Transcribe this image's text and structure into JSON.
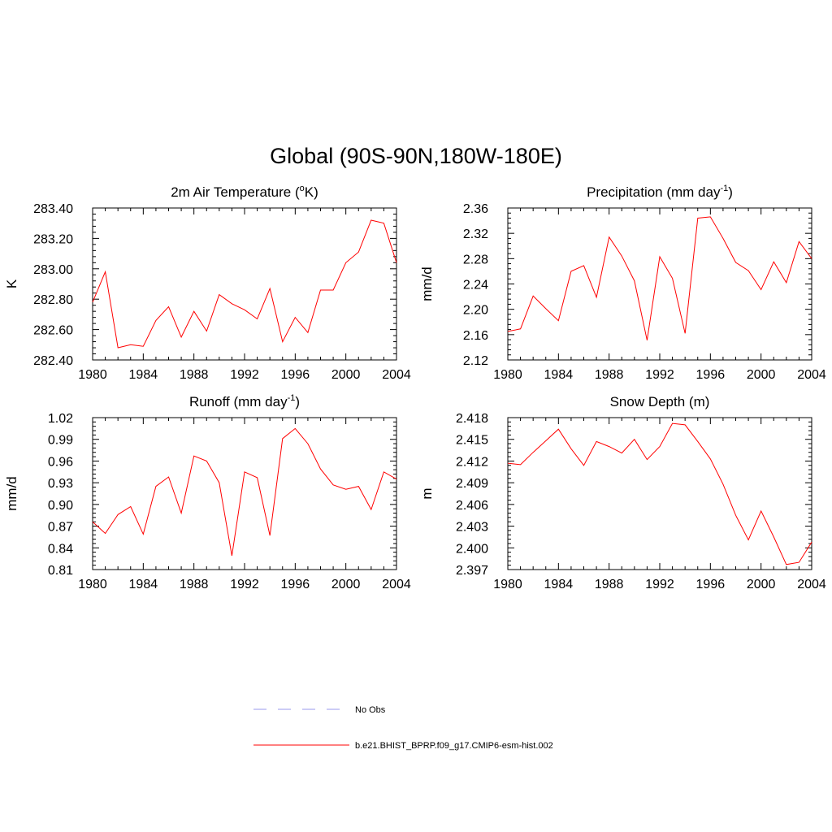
{
  "figure": {
    "title": "Global (90S-90N,180W-180E)"
  },
  "legend": {
    "entries": [
      {
        "label": "No Obs",
        "color": "#9999ee",
        "style": "dashed"
      },
      {
        "label": "b.e21.BHIST_BPRP.f09_g17.CMIP6-esm-hist.002",
        "color": "#ff0000",
        "style": "solid"
      }
    ]
  },
  "chart_data": [
    {
      "type": "line",
      "title_main": "2m Air Temperature (",
      "title_sup": "o",
      "title_end": "K)",
      "ylabel": "K",
      "xlim": [
        1980,
        2004
      ],
      "ylim": [
        282.4,
        283.4
      ],
      "xticks": [
        1980,
        1984,
        1988,
        1992,
        1996,
        2000,
        2004
      ],
      "xtick_labels": [
        "1980",
        "1984",
        "1988",
        "1992",
        "1996",
        "2000",
        "2004"
      ],
      "yticks": [
        282.4,
        282.6,
        282.8,
        283.0,
        283.2,
        283.4
      ],
      "ytick_labels": [
        "282.40",
        "282.60",
        "282.80",
        "283.00",
        "283.20",
        "283.40"
      ],
      "x": [
        1980,
        1981,
        1982,
        1983,
        1984,
        1985,
        1986,
        1987,
        1988,
        1989,
        1990,
        1991,
        1992,
        1993,
        1994,
        1995,
        1996,
        1997,
        1998,
        1999,
        2000,
        2001,
        2002,
        2003,
        2004
      ],
      "series": [
        {
          "color": "#ff0000",
          "values": [
            282.78,
            282.98,
            282.48,
            282.5,
            282.49,
            282.66,
            282.75,
            282.55,
            282.72,
            282.59,
            282.83,
            282.77,
            282.73,
            282.67,
            282.87,
            282.52,
            282.68,
            282.58,
            282.86,
            282.86,
            283.04,
            283.11,
            283.32,
            283.3,
            283.04
          ]
        }
      ]
    },
    {
      "type": "line",
      "title_main": "Precipitation (mm day",
      "title_sup": "-1",
      "title_end": ")",
      "ylabel": "mm/d",
      "xlim": [
        1980,
        2004
      ],
      "ylim": [
        2.12,
        2.36
      ],
      "xticks": [
        1980,
        1984,
        1988,
        1992,
        1996,
        2000,
        2004
      ],
      "xtick_labels": [
        "1980",
        "1984",
        "1988",
        "1992",
        "1996",
        "2000",
        "2004"
      ],
      "yticks": [
        2.12,
        2.16,
        2.2,
        2.24,
        2.28,
        2.32,
        2.36
      ],
      "ytick_labels": [
        "2.12",
        "2.16",
        "2.20",
        "2.24",
        "2.28",
        "2.32",
        "2.36"
      ],
      "x": [
        1980,
        1981,
        1982,
        1983,
        1984,
        1985,
        1986,
        1987,
        1988,
        1989,
        1990,
        1991,
        1992,
        1993,
        1994,
        1995,
        1996,
        1997,
        1998,
        1999,
        2000,
        2001,
        2002,
        2003,
        2004
      ],
      "series": [
        {
          "color": "#ff0000",
          "values": [
            2.165,
            2.169,
            2.221,
            2.201,
            2.182,
            2.26,
            2.269,
            2.219,
            2.314,
            2.284,
            2.245,
            2.151,
            2.283,
            2.249,
            2.162,
            2.344,
            2.346,
            2.312,
            2.274,
            2.261,
            2.231,
            2.275,
            2.242,
            2.307,
            2.28
          ]
        }
      ]
    },
    {
      "type": "line",
      "title_main": "Runoff (mm day",
      "title_sup": "-1",
      "title_end": ")",
      "ylabel": "mm/d",
      "xlim": [
        1980,
        2004
      ],
      "ylim": [
        0.81,
        1.02
      ],
      "xticks": [
        1980,
        1984,
        1988,
        1992,
        1996,
        2000,
        2004
      ],
      "xtick_labels": [
        "1980",
        "1984",
        "1988",
        "1992",
        "1996",
        "2000",
        "2004"
      ],
      "yticks": [
        0.81,
        0.84,
        0.87,
        0.9,
        0.93,
        0.96,
        0.99,
        1.02
      ],
      "ytick_labels": [
        "0.81",
        "0.84",
        "0.87",
        "0.90",
        "0.93",
        "0.96",
        "0.99",
        "1.02"
      ],
      "x": [
        1980,
        1981,
        1982,
        1983,
        1984,
        1985,
        1986,
        1987,
        1988,
        1989,
        1990,
        1991,
        1992,
        1993,
        1994,
        1995,
        1996,
        1997,
        1998,
        1999,
        2000,
        2001,
        2002,
        2003,
        2004
      ],
      "series": [
        {
          "color": "#ff0000",
          "values": [
            0.876,
            0.86,
            0.886,
            0.897,
            0.859,
            0.925,
            0.938,
            0.888,
            0.967,
            0.96,
            0.93,
            0.829,
            0.945,
            0.937,
            0.857,
            0.991,
            1.005,
            0.984,
            0.949,
            0.927,
            0.921,
            0.925,
            0.893,
            0.945,
            0.935
          ]
        }
      ]
    },
    {
      "type": "line",
      "title_main": "Snow Depth (m)",
      "title_sup": "",
      "title_end": "",
      "ylabel": "m",
      "xlim": [
        1980,
        2004
      ],
      "ylim": [
        2.397,
        2.418
      ],
      "xticks": [
        1980,
        1984,
        1988,
        1992,
        1996,
        2000,
        2004
      ],
      "xtick_labels": [
        "1980",
        "1984",
        "1988",
        "1992",
        "1996",
        "2000",
        "2004"
      ],
      "yticks": [
        2.397,
        2.4,
        2.403,
        2.406,
        2.409,
        2.412,
        2.415,
        2.418
      ],
      "ytick_labels": [
        "2.397",
        "2.400",
        "2.403",
        "2.406",
        "2.409",
        "2.412",
        "2.415",
        "2.418"
      ],
      "x": [
        1980,
        1981,
        1982,
        1983,
        1984,
        1985,
        1986,
        1987,
        1988,
        1989,
        1990,
        1991,
        1992,
        1993,
        1994,
        1995,
        1996,
        1997,
        1998,
        1999,
        2000,
        2001,
        2002,
        2003,
        2004
      ],
      "series": [
        {
          "color": "#ff0000",
          "values": [
            2.4117,
            2.4115,
            2.4132,
            2.4148,
            2.4164,
            2.4137,
            2.4114,
            2.4147,
            2.414,
            2.4131,
            2.415,
            2.4122,
            2.414,
            2.4172,
            2.417,
            2.4147,
            2.4123,
            2.4088,
            2.4045,
            2.4011,
            2.4051,
            2.4015,
            2.3977,
            2.398,
            2.4008
          ]
        }
      ]
    }
  ]
}
